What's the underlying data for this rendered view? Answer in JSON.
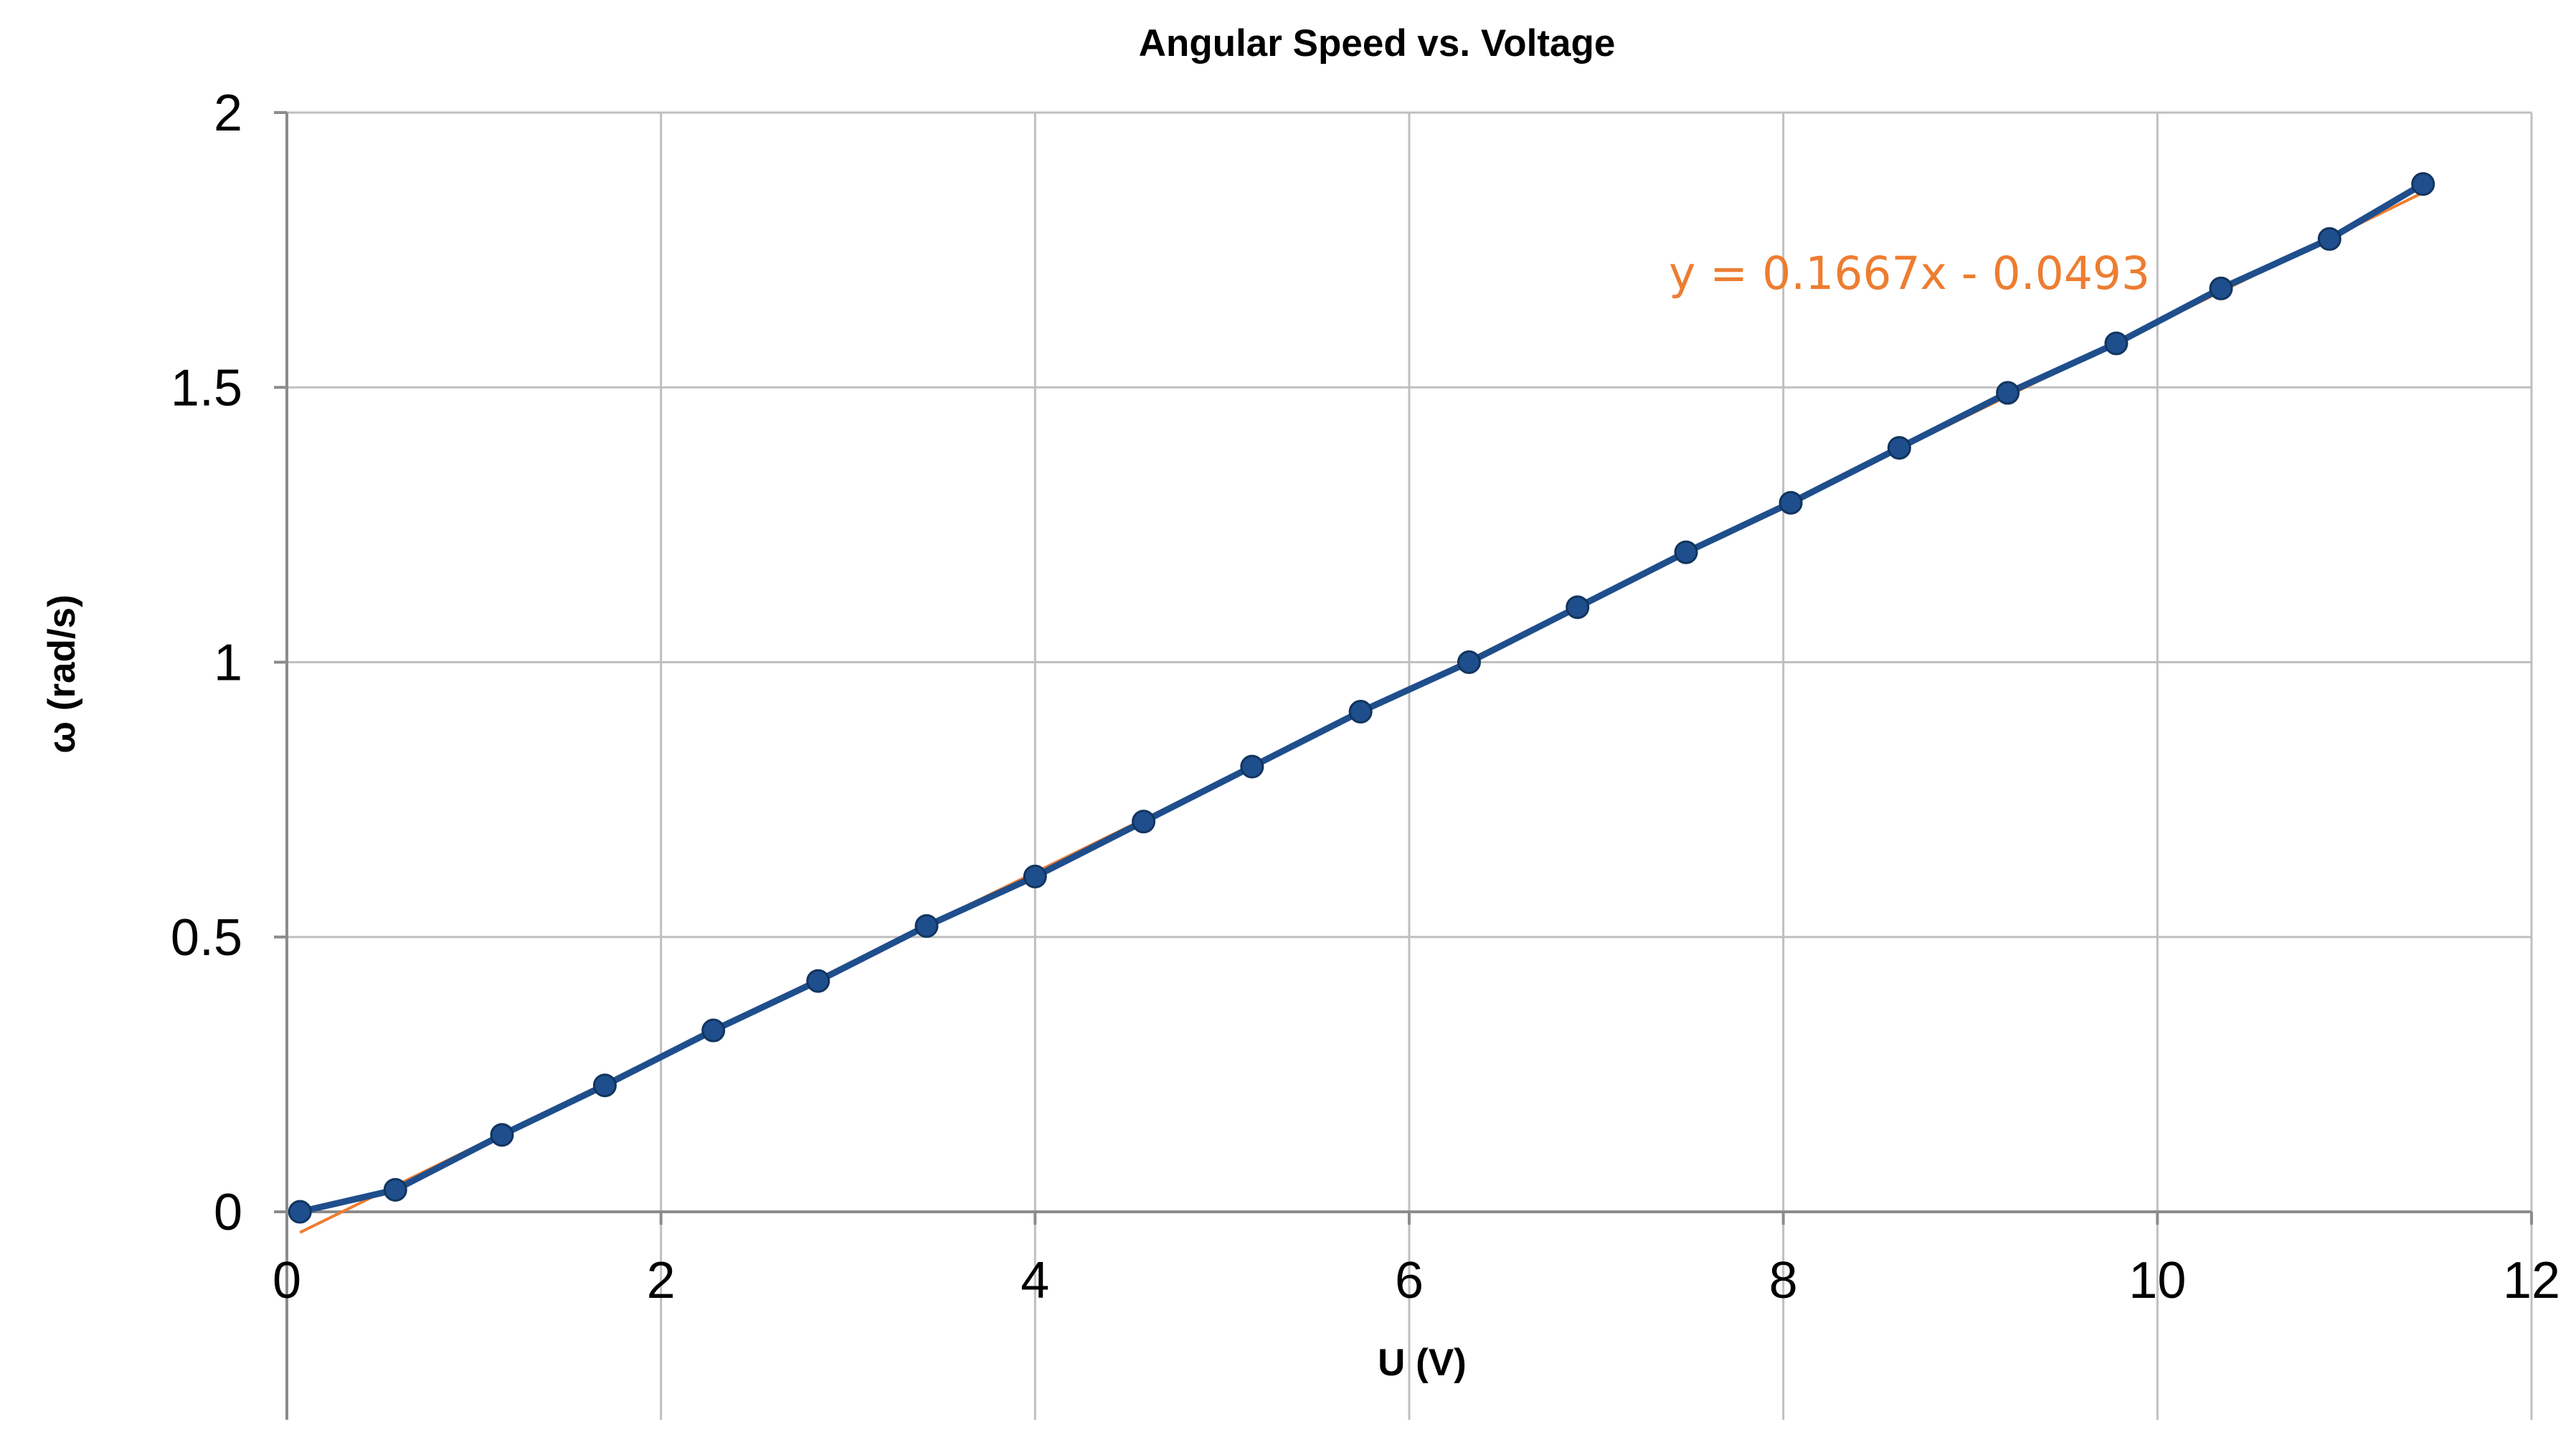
{
  "chart_data": {
    "type": "scatter",
    "title": "Angular Speed vs. Voltage",
    "xlabel": "U (V)",
    "ylabel": "ω (rad/s)",
    "xlim": [
      0,
      12
    ],
    "ylim": [
      0,
      2
    ],
    "xticks": [
      "0",
      "2",
      "4",
      "6",
      "8",
      "10",
      "12"
    ],
    "yticks": [
      "0",
      "0.5",
      "1",
      "1.5",
      "2"
    ],
    "grid": true,
    "series": [
      {
        "color": "#1f4e8c",
        "markers": true,
        "line": true,
        "x": [
          0.07,
          0.58,
          1.15,
          1.7,
          2.28,
          2.84,
          3.42,
          4.0,
          4.58,
          5.16,
          5.74,
          6.32,
          6.9,
          7.48,
          8.04,
          8.62,
          9.2,
          9.78,
          10.34,
          10.92,
          11.42
        ],
        "y": [
          0.0,
          0.04,
          0.14,
          0.23,
          0.33,
          0.42,
          0.52,
          0.61,
          0.71,
          0.81,
          0.91,
          1.0,
          1.1,
          1.2,
          1.29,
          1.39,
          1.49,
          1.58,
          1.68,
          1.77,
          1.87
        ]
      }
    ],
    "trendline": {
      "equation": "y = 0.1667x - 0.0493",
      "slope": 0.1667,
      "intercept": -0.0493,
      "x_range": [
        0.07,
        11.42
      ],
      "color": "#ed7d31"
    }
  }
}
